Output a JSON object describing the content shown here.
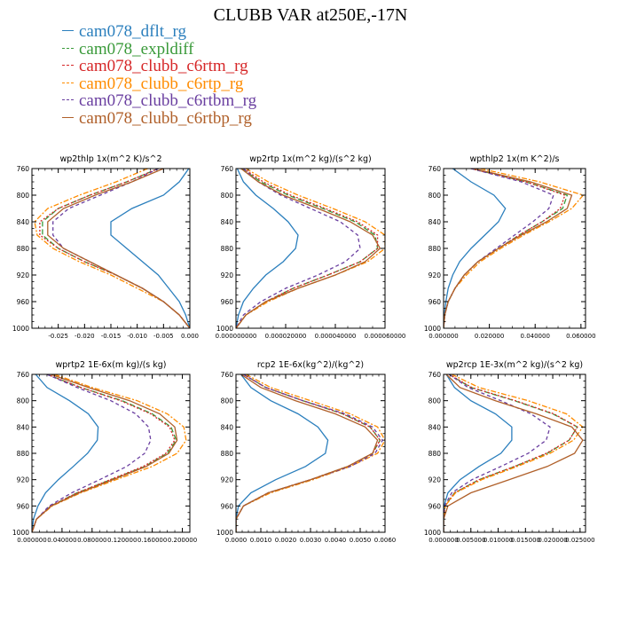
{
  "title": "CLUBB VAR at250E,-17N",
  "legend": [
    {
      "name": "cam078_dflt_rg",
      "color": "#2b7fbd",
      "dash": ""
    },
    {
      "name": "cam078_expldiff",
      "color": "#3a9a3a",
      "dash": "6,3"
    },
    {
      "name": "cam078_clubb_c6rtm_rg",
      "color": "#d62728",
      "dash": "2,2"
    },
    {
      "name": "cam078_clubb_c6rtp_rg",
      "color": "#ff8c00",
      "dash": "6,2,2,2"
    },
    {
      "name": "cam078_clubb_c6rtbm_rg",
      "color": "#6a3fa0",
      "dash": "4,3"
    },
    {
      "name": "cam078_clubb_c6rtbp_rg",
      "color": "#b0602a",
      "dash": ""
    }
  ],
  "chart_data": [
    {
      "type": "line",
      "title": "wp2thlp 1x(m^2 K)/s^2",
      "xlim": [
        -0.03,
        0.0
      ],
      "ylim": [
        760,
        1000
      ],
      "y_ticks": [
        760,
        800,
        840,
        880,
        920,
        960,
        1000
      ],
      "x_ticks": [
        -0.025,
        -0.02,
        -0.015,
        -0.01,
        -0.005,
        0.0
      ],
      "x_tick_labels": [
        "-0.025",
        "-0.020",
        "-0.015",
        "-0.010",
        "-0.005",
        "0.000"
      ],
      "y": [
        760,
        780,
        800,
        820,
        840,
        860,
        880,
        900,
        920,
        940,
        960,
        980,
        1000
      ],
      "series": [
        {
          "name": "cam078_dflt_rg",
          "values": [
            -0.0002,
            -0.002,
            -0.005,
            -0.011,
            -0.015,
            -0.015,
            -0.012,
            -0.009,
            -0.006,
            -0.004,
            -0.002,
            -0.0008,
            0.0
          ]
        },
        {
          "name": "cam078_expldiff",
          "values": [
            -0.006,
            -0.012,
            -0.019,
            -0.025,
            -0.028,
            -0.028,
            -0.025,
            -0.02,
            -0.014,
            -0.009,
            -0.005,
            -0.002,
            0.0
          ]
        },
        {
          "name": "cam078_clubb_c6rtm_rg",
          "values": [
            -0.006,
            -0.012,
            -0.019,
            -0.025,
            -0.0285,
            -0.0285,
            -0.025,
            -0.02,
            -0.014,
            -0.009,
            -0.005,
            -0.002,
            0.0
          ]
        },
        {
          "name": "cam078_clubb_c6rtp_rg",
          "values": [
            -0.008,
            -0.014,
            -0.021,
            -0.027,
            -0.0295,
            -0.029,
            -0.026,
            -0.021,
            -0.015,
            -0.01,
            -0.005,
            -0.002,
            0.0
          ]
        },
        {
          "name": "cam078_clubb_c6rtbm_rg",
          "values": [
            -0.006,
            -0.011,
            -0.017,
            -0.023,
            -0.026,
            -0.026,
            -0.024,
            -0.019,
            -0.014,
            -0.009,
            -0.005,
            -0.002,
            0.0
          ]
        },
        {
          "name": "cam078_clubb_c6rtbp_rg",
          "values": [
            -0.005,
            -0.011,
            -0.018,
            -0.024,
            -0.027,
            -0.027,
            -0.024,
            -0.019,
            -0.014,
            -0.009,
            -0.005,
            -0.002,
            0.0
          ]
        }
      ]
    },
    {
      "type": "line",
      "title": "wp2rtp 1x(m^2 kg)/(s^2 kg)",
      "xlim": [
        0.0,
        6e-05
      ],
      "ylim": [
        760,
        1000
      ],
      "y_ticks": [
        760,
        800,
        840,
        880,
        920,
        960,
        1000
      ],
      "x_ticks": [
        0.0,
        2e-05,
        4e-05,
        6e-05
      ],
      "x_tick_labels": [
        "0.000000000",
        "0.000020000",
        "0.000040000",
        "0.000060000"
      ],
      "y": [
        760,
        780,
        800,
        820,
        840,
        860,
        880,
        900,
        920,
        940,
        960,
        980,
        1000
      ],
      "series": [
        {
          "name": "cam078_dflt_rg",
          "values": [
            5e-07,
            3e-06,
            8e-06,
            1.5e-05,
            2.1e-05,
            2.5e-05,
            2.4e-05,
            1.9e-05,
            1.2e-05,
            7e-06,
            3e-06,
            1e-06,
            0.0
          ]
        },
        {
          "name": "cam078_expldiff",
          "values": [
            2.5e-06,
            1e-05,
            2.1e-05,
            3.5e-05,
            4.8e-05,
            5.6e-05,
            5.7e-05,
            5e-05,
            3.7e-05,
            2.3e-05,
            1.2e-05,
            4e-06,
            0.0
          ]
        },
        {
          "name": "cam078_clubb_c6rtm_rg",
          "values": [
            3e-06,
            1.1e-05,
            2.2e-05,
            3.6e-05,
            4.9e-05,
            5.7e-05,
            5.7e-05,
            5e-05,
            3.7e-05,
            2.3e-05,
            1.2e-05,
            4e-06,
            0.0
          ]
        },
        {
          "name": "cam078_clubb_c6rtp_rg",
          "values": [
            4e-06,
            1.3e-05,
            2.5e-05,
            3.9e-05,
            5.2e-05,
            6e-05,
            6e-05,
            5.3e-05,
            4e-05,
            2.5e-05,
            1.3e-05,
            4e-06,
            0.0
          ]
        },
        {
          "name": "cam078_clubb_c6rtbm_rg",
          "values": [
            3e-06,
            9e-06,
            1.8e-05,
            3e-05,
            4.2e-05,
            4.9e-05,
            5e-05,
            4.4e-05,
            3.3e-05,
            2e-05,
            1e-05,
            3e-06,
            0.0
          ]
        },
        {
          "name": "cam078_clubb_c6rtbp_rg",
          "values": [
            2e-06,
            9e-06,
            1.9e-05,
            3.3e-05,
            4.6e-05,
            5.5e-05,
            5.8e-05,
            5.2e-05,
            4e-05,
            2.5e-05,
            1.2e-05,
            4e-06,
            0.0
          ]
        }
      ]
    },
    {
      "type": "line",
      "title": "wpthlp2 1x(m K^2)/s",
      "xlim": [
        0.0,
        0.062
      ],
      "ylim": [
        760,
        1000
      ],
      "y_ticks": [
        760,
        800,
        840,
        880,
        920,
        960,
        1000
      ],
      "x_ticks": [
        0.0,
        0.02,
        0.04,
        0.06
      ],
      "x_tick_labels": [
        "0.000000",
        "0.020000",
        "0.040000",
        "0.060000"
      ],
      "y": [
        760,
        780,
        800,
        820,
        840,
        860,
        880,
        900,
        920,
        940,
        960,
        980,
        1000
      ],
      "series": [
        {
          "name": "cam078_dflt_rg",
          "values": [
            0.004,
            0.012,
            0.022,
            0.027,
            0.024,
            0.018,
            0.012,
            0.007,
            0.004,
            0.002,
            0.001,
            0.0003,
            0.0
          ]
        },
        {
          "name": "cam078_expldiff",
          "values": [
            0.012,
            0.036,
            0.054,
            0.052,
            0.043,
            0.033,
            0.024,
            0.015,
            0.009,
            0.005,
            0.002,
            0.0005,
            0.0
          ]
        },
        {
          "name": "cam078_clubb_c6rtm_rg",
          "values": [
            0.012,
            0.036,
            0.053,
            0.051,
            0.043,
            0.033,
            0.024,
            0.015,
            0.009,
            0.005,
            0.002,
            0.0005,
            0.0
          ]
        },
        {
          "name": "cam078_clubb_c6rtp_rg",
          "values": [
            0.016,
            0.042,
            0.061,
            0.056,
            0.046,
            0.035,
            0.025,
            0.016,
            0.01,
            0.005,
            0.002,
            0.0005,
            0.0
          ]
        },
        {
          "name": "cam078_clubb_c6rtbm_rg",
          "values": [
            0.012,
            0.034,
            0.048,
            0.046,
            0.039,
            0.031,
            0.023,
            0.015,
            0.009,
            0.005,
            0.002,
            0.0005,
            0.0
          ]
        },
        {
          "name": "cam078_clubb_c6rtbp_rg",
          "values": [
            0.013,
            0.038,
            0.056,
            0.054,
            0.045,
            0.034,
            0.024,
            0.015,
            0.009,
            0.005,
            0.002,
            0.0005,
            0.0
          ]
        }
      ]
    },
    {
      "type": "line",
      "title": "wprtp2 1E-6x(m kg)/(s kg)",
      "xlim": [
        0.0,
        0.21
      ],
      "ylim": [
        760,
        1000
      ],
      "y_ticks": [
        760,
        800,
        840,
        880,
        920,
        960,
        1000
      ],
      "x_ticks": [
        0.0,
        0.04,
        0.08,
        0.12,
        0.16,
        0.2
      ],
      "x_tick_labels": [
        "0.000000",
        "0.040000",
        "0.080000",
        "0.120000",
        "0.160000",
        "0.200000"
      ],
      "y": [
        760,
        780,
        800,
        820,
        840,
        860,
        880,
        900,
        920,
        940,
        960,
        980,
        1000
      ],
      "series": [
        {
          "name": "cam078_dflt_rg",
          "values": [
            0.005,
            0.02,
            0.05,
            0.075,
            0.088,
            0.087,
            0.074,
            0.055,
            0.035,
            0.018,
            0.008,
            0.002,
            0.0
          ]
        },
        {
          "name": "cam078_expldiff",
          "values": [
            0.02,
            0.065,
            0.12,
            0.16,
            0.185,
            0.192,
            0.18,
            0.15,
            0.105,
            0.06,
            0.025,
            0.006,
            0.0
          ]
        },
        {
          "name": "cam078_clubb_c6rtm_rg",
          "values": [
            0.02,
            0.065,
            0.118,
            0.158,
            0.183,
            0.19,
            0.178,
            0.148,
            0.104,
            0.06,
            0.025,
            0.006,
            0.0
          ]
        },
        {
          "name": "cam078_clubb_c6rtp_rg",
          "values": [
            0.03,
            0.08,
            0.14,
            0.18,
            0.202,
            0.205,
            0.193,
            0.16,
            0.112,
            0.065,
            0.027,
            0.006,
            0.0
          ]
        },
        {
          "name": "cam078_clubb_c6rtbm_rg",
          "values": [
            0.02,
            0.06,
            0.105,
            0.138,
            0.155,
            0.158,
            0.15,
            0.126,
            0.09,
            0.053,
            0.023,
            0.006,
            0.0
          ]
        },
        {
          "name": "cam078_clubb_c6rtbp_rg",
          "values": [
            0.025,
            0.075,
            0.13,
            0.17,
            0.19,
            0.193,
            0.182,
            0.152,
            0.108,
            0.063,
            0.026,
            0.006,
            0.0
          ]
        }
      ]
    },
    {
      "type": "line",
      "title": "rcp2 1E-6x(kg^2)/(kg^2)",
      "xlim": [
        0.0,
        0.006
      ],
      "ylim": [
        760,
        1000
      ],
      "y_ticks": [
        760,
        800,
        840,
        880,
        920,
        960,
        1000
      ],
      "x_ticks": [
        0.0,
        0.001,
        0.002,
        0.003,
        0.004,
        0.005,
        0.006
      ],
      "x_tick_labels": [
        "0.0000",
        "0.0010",
        "0.0020",
        "0.0030",
        "0.0040",
        "0.0050",
        "0.0060"
      ],
      "y": [
        760,
        780,
        800,
        820,
        840,
        860,
        880,
        900,
        920,
        940,
        960,
        980,
        1000
      ],
      "series": [
        {
          "name": "cam078_dflt_rg",
          "values": [
            0.0002,
            0.0006,
            0.0014,
            0.0025,
            0.0033,
            0.0037,
            0.0036,
            0.0028,
            0.0016,
            0.0006,
            0.0001,
            0.0,
            0.0
          ]
        },
        {
          "name": "cam078_expldiff",
          "values": [
            0.0003,
            0.0012,
            0.0027,
            0.0043,
            0.0054,
            0.0058,
            0.0055,
            0.0045,
            0.003,
            0.0013,
            0.0003,
            0.0,
            0.0
          ]
        },
        {
          "name": "cam078_clubb_c6rtm_rg",
          "values": [
            0.0003,
            0.0012,
            0.0027,
            0.0043,
            0.0054,
            0.0058,
            0.0055,
            0.0045,
            0.003,
            0.0013,
            0.0003,
            0.0,
            0.0
          ]
        },
        {
          "name": "cam078_clubb_c6rtp_rg",
          "values": [
            0.0004,
            0.0014,
            0.003,
            0.0046,
            0.0057,
            0.006,
            0.0057,
            0.0046,
            0.0031,
            0.0014,
            0.0003,
            0.0,
            0.0
          ]
        },
        {
          "name": "cam078_clubb_c6rtbm_rg",
          "values": [
            0.0003,
            0.0012,
            0.0027,
            0.0044,
            0.0055,
            0.0059,
            0.0056,
            0.0046,
            0.003,
            0.0013,
            0.0003,
            0.0,
            0.0
          ]
        },
        {
          "name": "cam078_clubb_c6rtbp_rg",
          "values": [
            0.0002,
            0.001,
            0.0024,
            0.004,
            0.0052,
            0.0057,
            0.0055,
            0.0045,
            0.003,
            0.0013,
            0.0003,
            0.0,
            0.0
          ]
        }
      ]
    },
    {
      "type": "line",
      "title": "wp2rcp 1E-3x(m^2 kg)/(s^2 kg)",
      "xlim": [
        0.0,
        0.026
      ],
      "ylim": [
        760,
        1000
      ],
      "y_ticks": [
        760,
        800,
        840,
        880,
        920,
        960,
        1000
      ],
      "x_ticks": [
        0.0,
        0.005,
        0.01,
        0.015,
        0.02,
        0.025
      ],
      "x_tick_labels": [
        "0.000000",
        "0.005000",
        "0.010000",
        "0.015000",
        "0.020000",
        "0.025000"
      ],
      "y": [
        760,
        780,
        800,
        820,
        840,
        860,
        880,
        900,
        920,
        940,
        960,
        980,
        1000
      ],
      "series": [
        {
          "name": "cam078_dflt_rg",
          "values": [
            0.0005,
            0.002,
            0.005,
            0.0095,
            0.0125,
            0.0125,
            0.0105,
            0.0065,
            0.003,
            0.0008,
            0.0001,
            0.0,
            0.0
          ]
        },
        {
          "name": "cam078_expldiff",
          "values": [
            0.001,
            0.005,
            0.013,
            0.02,
            0.0245,
            0.023,
            0.019,
            0.013,
            0.0065,
            0.002,
            0.0003,
            0.0,
            0.0
          ]
        },
        {
          "name": "cam078_clubb_c6rtm_rg",
          "values": [
            0.001,
            0.0052,
            0.0132,
            0.0202,
            0.0245,
            0.023,
            0.0188,
            0.013,
            0.0065,
            0.002,
            0.0003,
            0.0,
            0.0
          ]
        },
        {
          "name": "cam078_clubb_c6rtp_rg",
          "values": [
            0.0015,
            0.0065,
            0.0155,
            0.0225,
            0.0255,
            0.0238,
            0.0195,
            0.0135,
            0.007,
            0.0022,
            0.0003,
            0.0,
            0.0
          ]
        },
        {
          "name": "cam078_clubb_c6rtbm_rg",
          "values": [
            0.001,
            0.0045,
            0.0105,
            0.016,
            0.0195,
            0.0188,
            0.0155,
            0.0105,
            0.0052,
            0.0015,
            0.0002,
            0.0,
            0.0
          ]
        },
        {
          "name": "cam078_clubb_c6rtbp_rg",
          "values": [
            0.0005,
            0.003,
            0.0095,
            0.017,
            0.0235,
            0.0255,
            0.024,
            0.019,
            0.012,
            0.005,
            0.0008,
            0.0,
            0.0
          ]
        }
      ]
    }
  ]
}
